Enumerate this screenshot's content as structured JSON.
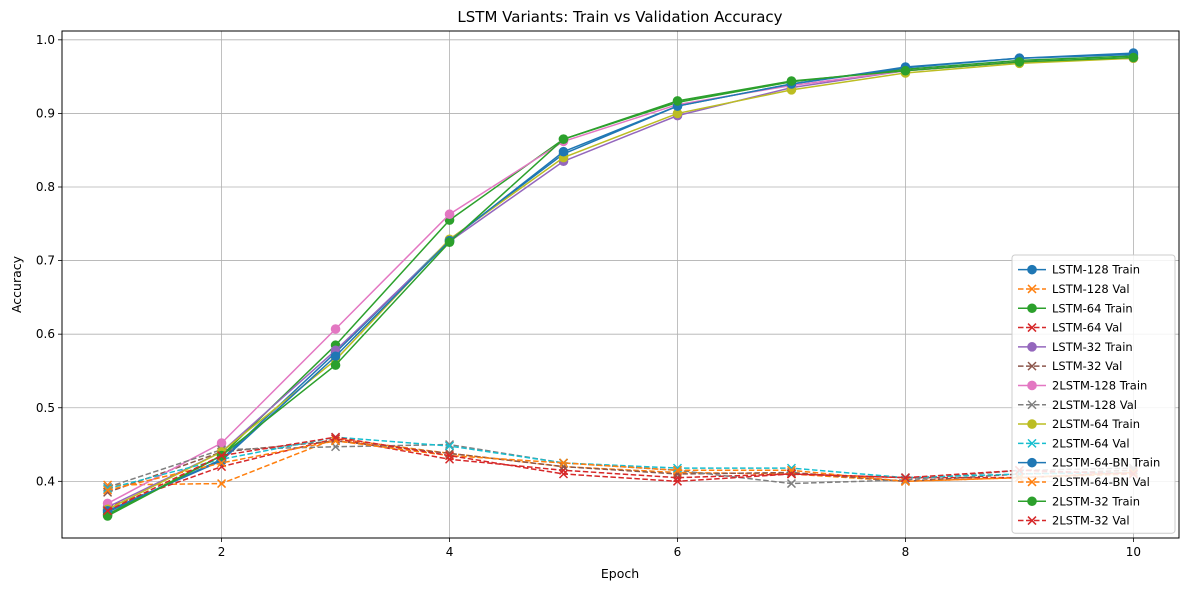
{
  "chart_data": {
    "type": "line",
    "title": "LSTM Variants: Train vs Validation Accuracy",
    "xlabel": "Epoch",
    "ylabel": "Accuracy",
    "x": [
      1,
      2,
      3,
      4,
      5,
      6,
      7,
      8,
      9,
      10
    ],
    "xlim": [
      0.6,
      10.4
    ],
    "ylim": [
      0.323,
      1.012
    ],
    "xticks": [
      2,
      4,
      6,
      8,
      10
    ],
    "yticks": [
      0.4,
      0.5,
      0.6,
      0.7,
      0.8,
      0.9,
      1.0
    ],
    "xtick_labels": [
      "2",
      "4",
      "6",
      "8",
      "10"
    ],
    "ytick_labels": [
      "0.4",
      "0.5",
      "0.6",
      "0.7",
      "0.8",
      "0.9",
      "1.0"
    ],
    "grid": true,
    "legend_position": "lower-right",
    "series": [
      {
        "name": "LSTM-128 Train",
        "color": "#1f77b4",
        "style": "solid",
        "marker": "circle",
        "values": [
          0.358,
          0.43,
          0.575,
          0.728,
          0.845,
          0.91,
          0.94,
          0.963,
          0.975,
          0.982
        ]
      },
      {
        "name": "LSTM-128 Val",
        "color": "#ff7f0e",
        "style": "dashed",
        "marker": "x",
        "values": [
          0.395,
          0.397,
          0.458,
          0.438,
          0.42,
          0.412,
          0.41,
          0.4,
          0.405,
          0.41
        ]
      },
      {
        "name": "LSTM-64 Train",
        "color": "#2ca02c",
        "style": "solid",
        "marker": "circle",
        "values": [
          0.355,
          0.435,
          0.585,
          0.755,
          0.865,
          0.915,
          0.943,
          0.96,
          0.972,
          0.978
        ]
      },
      {
        "name": "LSTM-64 Val",
        "color": "#d62728",
        "style": "dashed",
        "marker": "x",
        "values": [
          0.365,
          0.42,
          0.458,
          0.43,
          0.415,
          0.405,
          0.41,
          0.405,
          0.405,
          0.412
        ]
      },
      {
        "name": "LSTM-32 Train",
        "color": "#9467bd",
        "style": "solid",
        "marker": "circle",
        "values": [
          0.365,
          0.44,
          0.578,
          0.726,
          0.835,
          0.897,
          0.935,
          0.958,
          0.97,
          0.975
        ]
      },
      {
        "name": "LSTM-32 Val",
        "color": "#8c564b",
        "style": "dashed",
        "marker": "x",
        "values": [
          0.385,
          0.44,
          0.455,
          0.438,
          0.42,
          0.41,
          0.412,
          0.4,
          0.41,
          0.415
        ]
      },
      {
        "name": "2LSTM-128 Train",
        "color": "#e377c2",
        "style": "solid",
        "marker": "circle",
        "values": [
          0.37,
          0.452,
          0.607,
          0.763,
          0.862,
          0.912,
          0.938,
          0.958,
          0.97,
          0.975
        ]
      },
      {
        "name": "2LSTM-128 Val",
        "color": "#7f7f7f",
        "style": "dashed",
        "marker": "x",
        "values": [
          0.392,
          0.443,
          0.447,
          0.45,
          0.425,
          0.415,
          0.397,
          0.402,
          0.415,
          0.418
        ]
      },
      {
        "name": "2LSTM-64 Train",
        "color": "#bcbd22",
        "style": "solid",
        "marker": "circle",
        "values": [
          0.362,
          0.44,
          0.565,
          0.729,
          0.84,
          0.9,
          0.932,
          0.955,
          0.968,
          0.975
        ]
      },
      {
        "name": "2LSTM-64 Val",
        "color": "#17becf",
        "style": "dashed",
        "marker": "x",
        "values": [
          0.39,
          0.43,
          0.46,
          0.448,
          0.425,
          0.418,
          0.418,
          0.405,
          0.41,
          0.412
        ]
      },
      {
        "name": "2LSTM-64-BN Train",
        "color": "#1f77b4",
        "style": "solid",
        "marker": "circle",
        "values": [
          0.36,
          0.428,
          0.57,
          0.727,
          0.848,
          0.91,
          0.94,
          0.962,
          0.975,
          0.98
        ]
      },
      {
        "name": "2LSTM-64-BN Val",
        "color": "#ff7f0e",
        "style": "dashed",
        "marker": "x",
        "values": [
          0.388,
          0.425,
          0.455,
          0.435,
          0.425,
          0.415,
          0.415,
          0.4,
          0.405,
          0.412
        ]
      },
      {
        "name": "2LSTM-32 Train",
        "color": "#2ca02c",
        "style": "solid",
        "marker": "circle",
        "values": [
          0.353,
          0.435,
          0.558,
          0.725,
          0.865,
          0.917,
          0.944,
          0.958,
          0.97,
          0.976
        ]
      },
      {
        "name": "2LSTM-32 Val",
        "color": "#d62728",
        "style": "dashed",
        "marker": "x",
        "values": [
          0.36,
          0.435,
          0.46,
          0.435,
          0.41,
          0.4,
          0.41,
          0.405,
          0.415,
          0.41
        ]
      }
    ]
  }
}
